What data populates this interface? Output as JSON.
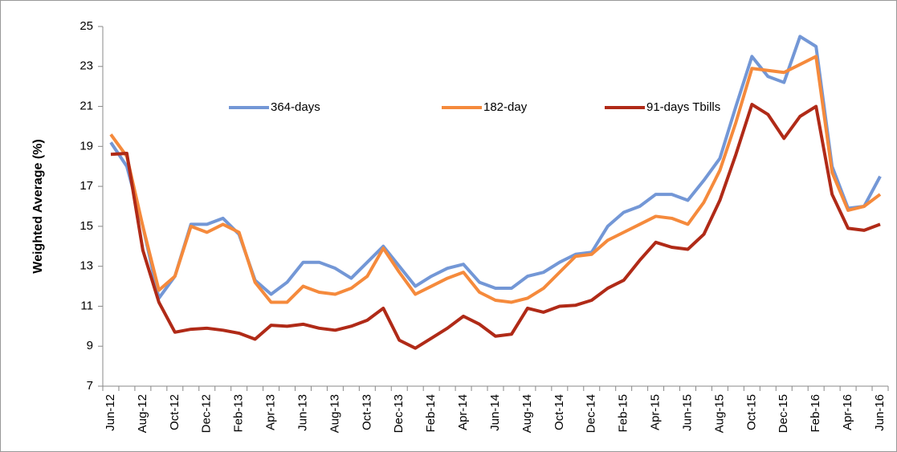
{
  "chart_data": {
    "type": "line",
    "y_label": "Weighted Average (%)",
    "categories": [
      "Jun-12",
      null,
      "Aug-12",
      null,
      "Oct-12",
      null,
      "Dec-12",
      null,
      "Feb-13",
      null,
      "Apr-13",
      null,
      "Jun-13",
      null,
      "Aug-13",
      null,
      "Oct-13",
      null,
      "Dec-13",
      null,
      "Feb-14",
      null,
      "Apr-14",
      null,
      "Jun-14",
      null,
      "Aug-14",
      null,
      "Oct-14",
      null,
      "Dec-14",
      null,
      "Feb-15",
      null,
      "Apr-15",
      null,
      "Jun-15",
      null,
      "Aug-15",
      null,
      "Oct-15",
      null,
      "Dec-15",
      null,
      "Feb-16",
      null,
      "Apr-16",
      null,
      "Jun-16"
    ],
    "series": [
      {
        "name": "364-days",
        "color": "#7397d6",
        "values": [
          19.2,
          18.0,
          15.0,
          11.4,
          12.5,
          15.1,
          15.1,
          15.4,
          14.6,
          12.3,
          11.6,
          12.2,
          13.2,
          13.2,
          12.9,
          12.4,
          13.2,
          14.0,
          13.0,
          12.0,
          12.5,
          12.9,
          13.1,
          12.2,
          11.9,
          11.9,
          12.5,
          12.7,
          13.2,
          13.6,
          13.7,
          15.0,
          15.7,
          16.0,
          16.6,
          16.6,
          16.3,
          17.3,
          18.4,
          21.0,
          23.5,
          22.5,
          22.2,
          24.5,
          24.0,
          18.0,
          15.9,
          16.0,
          17.5
        ]
      },
      {
        "name": "182-day",
        "color": "#f58a3c",
        "values": [
          19.6,
          18.5,
          15.0,
          11.8,
          12.5,
          15.0,
          14.7,
          15.1,
          14.7,
          12.2,
          11.2,
          11.2,
          12.0,
          11.7,
          11.6,
          11.9,
          12.5,
          13.9,
          12.7,
          11.6,
          12.0,
          12.4,
          12.7,
          11.7,
          11.3,
          11.2,
          11.4,
          11.9,
          12.7,
          13.5,
          13.6,
          14.3,
          14.7,
          15.1,
          15.5,
          15.4,
          15.1,
          16.2,
          17.8,
          20.2,
          22.9,
          22.8,
          22.7,
          23.1,
          23.5,
          17.7,
          15.8,
          16.0,
          16.6
        ]
      },
      {
        "name": "91-days Tbills",
        "color": "#b02a17",
        "values": [
          18.6,
          18.65,
          13.8,
          11.2,
          9.7,
          9.85,
          9.9,
          9.8,
          9.65,
          9.35,
          10.05,
          10.0,
          10.1,
          9.9,
          9.8,
          10.0,
          10.3,
          10.9,
          9.3,
          8.9,
          9.4,
          9.9,
          10.5,
          10.1,
          9.5,
          9.6,
          10.9,
          10.7,
          11.0,
          11.05,
          11.3,
          11.9,
          12.3,
          13.3,
          14.2,
          13.95,
          13.85,
          14.6,
          16.3,
          18.6,
          21.1,
          20.6,
          19.4,
          20.5,
          21.0,
          16.6,
          14.9,
          14.8,
          15.1
        ]
      }
    ],
    "ylim": [
      7,
      25
    ],
    "yticks": [
      7,
      9,
      11,
      13,
      15,
      17,
      19,
      21,
      23,
      25
    ]
  }
}
